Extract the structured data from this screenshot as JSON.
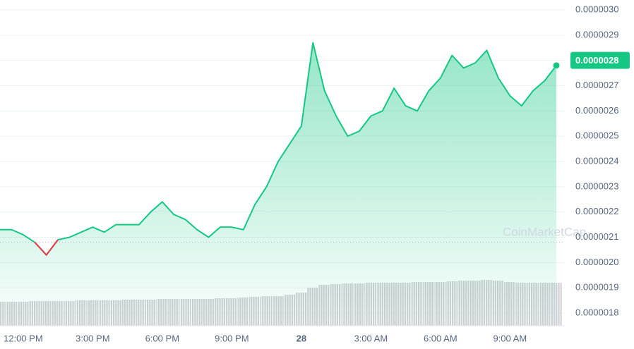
{
  "chart_data": {
    "type": "line",
    "watermark": "CoinMarketCap",
    "categories": [
      null,
      null,
      "12:00 PM",
      null,
      null,
      null,
      null,
      null,
      "3:00 PM",
      null,
      null,
      null,
      null,
      null,
      "6:00 PM",
      null,
      null,
      null,
      null,
      null,
      "9:00 PM",
      null,
      null,
      null,
      null,
      null,
      "28",
      null,
      null,
      null,
      null,
      null,
      "3:00 AM",
      null,
      null,
      null,
      null,
      null,
      "6:00 AM",
      null,
      null,
      null,
      null,
      null,
      "9:00 AM",
      null,
      null,
      null,
      null
    ],
    "series": [
      {
        "name": "Price",
        "color": "#16c784",
        "below_color": "#ea3943",
        "values": [
          2.13e-06,
          2.13e-06,
          2.11e-06,
          2.08e-06,
          2.03e-06,
          2.09e-06,
          2.1e-06,
          2.12e-06,
          2.14e-06,
          2.12e-06,
          2.15e-06,
          2.15e-06,
          2.15e-06,
          2.2e-06,
          2.24e-06,
          2.19e-06,
          2.17e-06,
          2.13e-06,
          2.1e-06,
          2.14e-06,
          2.14e-06,
          2.13e-06,
          2.23e-06,
          2.3e-06,
          2.4e-06,
          2.47e-06,
          2.54e-06,
          2.87e-06,
          2.68e-06,
          2.58e-06,
          2.5e-06,
          2.52e-06,
          2.58e-06,
          2.6e-06,
          2.69e-06,
          2.62e-06,
          2.6e-06,
          2.68e-06,
          2.73e-06,
          2.82e-06,
          2.77e-06,
          2.79e-06,
          2.84e-06,
          2.73e-06,
          2.66e-06,
          2.62e-06,
          2.68e-06,
          2.72e-06,
          2.78e-06
        ]
      },
      {
        "name": "Volume",
        "color": "#cfcfd4",
        "axis": "y2",
        "values": [
          34,
          34,
          34,
          35,
          35,
          35,
          35,
          36,
          36,
          36,
          36,
          37,
          37,
          37,
          38,
          38,
          38,
          38,
          38,
          39,
          39,
          40,
          41,
          42,
          42,
          44,
          47,
          54,
          58,
          59,
          60,
          60,
          61,
          61,
          61,
          61,
          62,
          62,
          62,
          63,
          64,
          64,
          65,
          64,
          62,
          61,
          61,
          61,
          61
        ]
      }
    ],
    "baseline": 2.08e-06,
    "current_price": {
      "value": 2.8e-06,
      "label": "0.0000028"
    },
    "ylim": [
      1.8e-06,
      3e-06
    ],
    "y2lim": [
      0,
      180
    ],
    "yticks": [
      {
        "value": 3e-06,
        "label": "0.0000030"
      },
      {
        "value": 2.9e-06,
        "label": "0.0000029"
      },
      {
        "value": 2.8e-06,
        "label": "0.0000028"
      },
      {
        "value": 2.7e-06,
        "label": "0.0000027"
      },
      {
        "value": 2.6e-06,
        "label": "0.0000026"
      },
      {
        "value": 2.5e-06,
        "label": "0.0000025"
      },
      {
        "value": 2.4e-06,
        "label": "0.0000024"
      },
      {
        "value": 2.3e-06,
        "label": "0.0000023"
      },
      {
        "value": 2.2e-06,
        "label": "0.0000022"
      },
      {
        "value": 2.1e-06,
        "label": "0.0000021"
      },
      {
        "value": 2e-06,
        "label": "0.0000020"
      },
      {
        "value": 1.9e-06,
        "label": "0.0000019"
      },
      {
        "value": 1.8e-06,
        "label": "0.0000018"
      }
    ],
    "grid": true
  }
}
